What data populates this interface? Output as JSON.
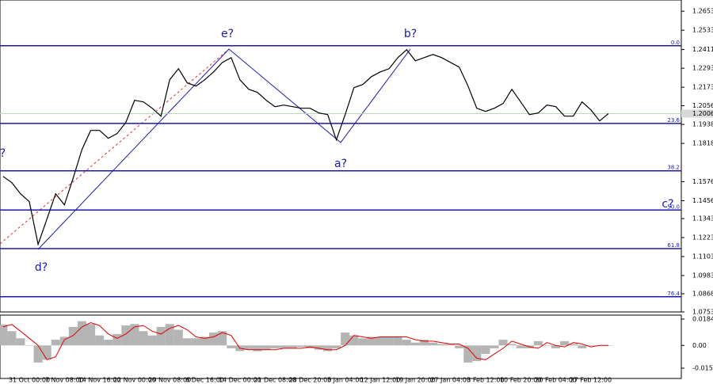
{
  "chart_data": [
    {
      "type": "line",
      "color": "#000000",
      "categories": [
        null,
        null,
        null,
        "31 Oct 00:00",
        null,
        null,
        null,
        "7 Nov 08:00",
        null,
        null,
        null,
        "14 Nov 16:00",
        null,
        null,
        null,
        "22 Nov 00:00",
        null,
        null,
        null,
        "29 Nov 08:00",
        null,
        null,
        null,
        "6 Dec 16:00",
        null,
        null,
        null,
        "14 Dec 00:00",
        null,
        null,
        null,
        "21 Dec 08:00",
        null,
        null,
        null,
        "28 Dec 20:00",
        null,
        null,
        null,
        "5 Jan 04:00",
        null,
        null,
        null,
        "12 Jan 12:00",
        null,
        null,
        null,
        "19 Jan 20:00",
        null,
        null,
        null,
        "27 Jan 04:00",
        null,
        null,
        null,
        "3 Feb 12:00",
        null,
        null,
        null,
        "10 Feb 20:00",
        null,
        null,
        null,
        "20 Feb 04:00",
        null,
        null,
        null,
        "27 Feb 12:00",
        null,
        null
      ],
      "values": [
        1.161,
        1.157,
        1.15,
        1.145,
        1.118,
        1.134,
        1.15,
        1.143,
        1.16,
        1.178,
        1.19,
        1.19,
        1.185,
        1.188,
        1.195,
        1.209,
        1.208,
        1.204,
        1.199,
        1.222,
        1.229,
        1.22,
        1.218,
        1.222,
        1.227,
        1.233,
        1.236,
        1.222,
        1.216,
        1.214,
        1.209,
        1.205,
        1.206,
        1.205,
        1.204,
        1.204,
        1.201,
        1.2,
        1.184,
        1.2,
        1.217,
        1.219,
        1.224,
        1.227,
        1.229,
        1.236,
        1.241,
        1.234,
        1.236,
        1.238,
        1.236,
        1.233,
        1.23,
        1.218,
        1.204,
        1.202,
        1.204,
        1.207,
        1.216,
        1.208,
        1.2,
        1.201,
        1.206,
        1.205,
        1.199,
        1.199,
        1.208,
        1.203,
        1.196,
        1.2006
      ],
      "ylim": [
        1.0753,
        1.2724
      ],
      "yticks": [
        1.2653,
        1.2533,
        1.2411,
        1.2293,
        1.2173,
        1.2056,
        1.1938,
        1.1818,
        1.1576,
        1.1456,
        1.1343,
        1.1223,
        1.1103,
        1.0983,
        1.0868,
        1.0753
      ],
      "last_price": 1.2006,
      "fib_levels": [
        {
          "value": 1.2435,
          "label": "0.0"
        },
        {
          "value": 1.1944,
          "label": "23.6"
        },
        {
          "value": 1.1645,
          "label": "38.2"
        },
        {
          "value": 1.1397,
          "label": "50.0"
        },
        {
          "value": 1.1153,
          "label": "61.8"
        },
        {
          "value": 1.0849,
          "label": "76.4"
        }
      ],
      "annotations": [
        "e?",
        "b?",
        "a?",
        "c?",
        "d?",
        "c?"
      ]
    },
    {
      "type": "bar",
      "color": "#b4b4b4",
      "values": [
        0.0147,
        0.01,
        0.005,
        0.0,
        -0.012,
        -0.01,
        0.004,
        0.006,
        0.013,
        0.017,
        0.015,
        0.007,
        0.004,
        0.008,
        0.014,
        0.015,
        0.01,
        0.007,
        0.013,
        0.015,
        0.011,
        0.005,
        0.005,
        0.006,
        0.009,
        0.01,
        -0.002,
        -0.004,
        -0.003,
        -0.004,
        -0.003,
        -0.002,
        -0.002,
        -0.002,
        -0.001,
        -0.002,
        -0.003,
        -0.004,
        -0.002,
        0.009,
        0.007,
        0.005,
        0.006,
        0.006,
        0.006,
        0.006,
        0.004,
        0.002,
        0.004,
        0.002,
        0.001,
        0.001,
        -0.002,
        -0.012,
        -0.011,
        -0.006,
        -0.002,
        0.004,
        0.001,
        -0.002,
        -0.002,
        0.003,
        0.0,
        -0.002,
        0.003,
        0.001,
        -0.002,
        0.0,
        0.0,
        0.0
      ],
      "signal": {
        "color": "#e00000",
        "values": [
          0.013,
          0.0147,
          0.01,
          0.005,
          0.0,
          -0.01,
          -0.008,
          0.004,
          0.007,
          0.013,
          0.016,
          0.014,
          0.008,
          0.005,
          0.008,
          0.013,
          0.014,
          0.01,
          0.008,
          0.012,
          0.014,
          0.011,
          0.006,
          0.005,
          0.006,
          0.009,
          0.007,
          -0.002,
          -0.003,
          -0.003,
          -0.003,
          -0.003,
          -0.002,
          -0.002,
          -0.002,
          -0.001,
          -0.002,
          -0.003,
          -0.003,
          0.0,
          0.007,
          0.006,
          0.005,
          0.006,
          0.006,
          0.006,
          0.006,
          0.004,
          0.003,
          0.003,
          0.002,
          0.001,
          0.001,
          -0.002,
          -0.009,
          -0.01,
          -0.006,
          -0.002,
          0.003,
          0.001,
          -0.001,
          -0.002,
          0.002,
          0.0,
          -0.001,
          0.002,
          0.001,
          -0.001,
          0.0,
          0.0
        ]
      },
      "ylim": [
        -0.02315,
        0.02125
      ],
      "yticks": [
        0.01848,
        {
          "value": 0,
          "label": "0.00"
        },
        -0.01593
      ]
    }
  ]
}
